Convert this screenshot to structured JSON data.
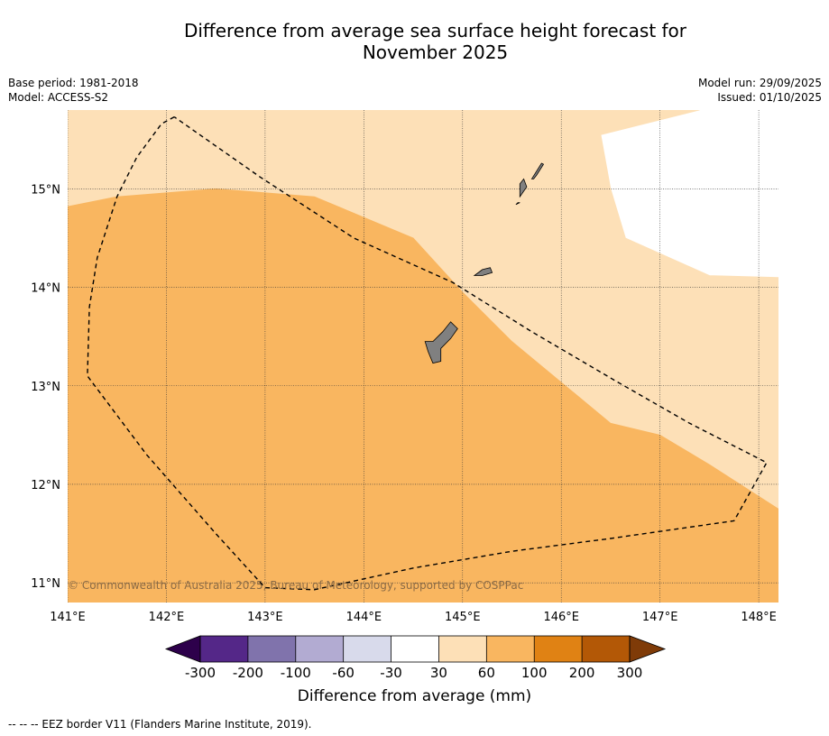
{
  "title_line1": "Difference from average sea surface height forecast for",
  "title_line2": "November 2025",
  "meta_left": {
    "base_period": "Base period: 1981-2018",
    "model": "Model: ACCESS-S2"
  },
  "meta_right": {
    "model_run": "Model run: 29/09/2025",
    "issued": "Issued: 01/10/2025"
  },
  "copyright": "© Commonwealth of Australia 2025, Bureau of Meteorology, supported by COSPPac",
  "footnote": "--  --  -- EEZ border V11 (Flanders Marine Institute, 2019).",
  "map": {
    "lon_range": [
      141,
      148.2
    ],
    "lat_range": [
      10.8,
      15.8
    ],
    "lon_ticks": [
      141,
      142,
      143,
      144,
      145,
      146,
      147,
      148
    ],
    "lon_labels": [
      "141°E",
      "142°E",
      "143°E",
      "144°E",
      "145°E",
      "146°E",
      "147°E",
      "148°E"
    ],
    "lat_ticks": [
      11,
      12,
      13,
      14,
      15
    ],
    "lat_labels": [
      "11°N",
      "12°N",
      "13°N",
      "14°N",
      "15°N"
    ],
    "regions": [
      {
        "name": "anomaly-30-to-60-region",
        "color": "#fde0b7",
        "polygon": [
          [
            141,
            15.8
          ],
          [
            147.4,
            15.8
          ],
          [
            146.4,
            15.55
          ],
          [
            146.5,
            15.0
          ],
          [
            146.65,
            14.5
          ],
          [
            147.5,
            14.12
          ],
          [
            148.2,
            14.1
          ],
          [
            148.2,
            11.75
          ],
          [
            147.5,
            12.2
          ],
          [
            147.0,
            12.5
          ],
          [
            146.5,
            12.62
          ],
          [
            145.5,
            13.45
          ],
          [
            145.0,
            13.95
          ],
          [
            144.5,
            14.5
          ],
          [
            143.5,
            14.92
          ],
          [
            142.5,
            15.0
          ],
          [
            141.5,
            14.92
          ],
          [
            141,
            14.82
          ]
        ]
      },
      {
        "name": "anomaly-60-to-100-region",
        "color": "#f9b660",
        "polygon": [
          [
            141,
            14.82
          ],
          [
            141.5,
            14.92
          ],
          [
            142.5,
            15.0
          ],
          [
            143.5,
            14.92
          ],
          [
            144.5,
            14.5
          ],
          [
            145.0,
            13.95
          ],
          [
            145.5,
            13.45
          ],
          [
            146.5,
            12.62
          ],
          [
            147.0,
            12.5
          ],
          [
            147.5,
            12.2
          ],
          [
            148.2,
            11.75
          ],
          [
            148.2,
            10.8
          ],
          [
            141,
            10.8
          ]
        ]
      }
    ],
    "islands": [
      {
        "name": "guam-island",
        "polygon": [
          [
            144.62,
            13.45
          ],
          [
            144.7,
            13.45
          ],
          [
            144.8,
            13.55
          ],
          [
            144.88,
            13.65
          ],
          [
            144.95,
            13.58
          ],
          [
            144.88,
            13.48
          ],
          [
            144.78,
            13.38
          ],
          [
            144.78,
            13.25
          ],
          [
            144.7,
            13.23
          ],
          [
            144.65,
            13.35
          ]
        ]
      },
      {
        "name": "rota-island",
        "polygon": [
          [
            145.12,
            14.12
          ],
          [
            145.2,
            14.18
          ],
          [
            145.28,
            14.2
          ],
          [
            145.3,
            14.15
          ],
          [
            145.2,
            14.12
          ]
        ]
      },
      {
        "name": "tinian-island",
        "polygon": [
          [
            145.58,
            14.92
          ],
          [
            145.65,
            15.02
          ],
          [
            145.62,
            15.1
          ],
          [
            145.58,
            15.05
          ]
        ]
      },
      {
        "name": "saipan-island",
        "polygon": [
          [
            145.7,
            15.1
          ],
          [
            145.8,
            15.26
          ],
          [
            145.82,
            15.25
          ],
          [
            145.75,
            15.14
          ],
          [
            145.72,
            15.1
          ]
        ]
      },
      {
        "name": "aguijan-island",
        "polygon": [
          [
            145.54,
            14.84
          ],
          [
            145.58,
            14.86
          ],
          [
            145.56,
            14.86
          ]
        ]
      }
    ],
    "eez_border": [
      [
        142.08,
        15.73
      ],
      [
        141.95,
        15.66
      ],
      [
        141.7,
        15.32
      ],
      [
        141.5,
        14.92
      ],
      [
        141.3,
        14.3
      ],
      [
        141.22,
        13.8
      ],
      [
        141.2,
        13.1
      ],
      [
        141.8,
        12.3
      ],
      [
        142.5,
        11.5
      ],
      [
        143.0,
        10.95
      ],
      [
        143.5,
        10.93
      ],
      [
        144.5,
        11.15
      ],
      [
        145.5,
        11.32
      ],
      [
        146.5,
        11.45
      ],
      [
        147.75,
        11.63
      ],
      [
        148.08,
        12.22
      ],
      [
        147.3,
        12.62
      ],
      [
        146.55,
        13.05
      ],
      [
        145.7,
        13.55
      ],
      [
        144.9,
        14.05
      ],
      [
        143.9,
        14.5
      ],
      [
        142.95,
        15.12
      ],
      [
        142.08,
        15.73
      ]
    ]
  },
  "colorbar": {
    "label": "Difference from average (mm)",
    "low_extend_color": "#2d004b",
    "high_extend_color": "#7f3b08",
    "colors": [
      "#542788",
      "#8073ac",
      "#b2abd2",
      "#d8daeb",
      "#ffffff",
      "#fde0b7",
      "#f9b660",
      "#e08214",
      "#b35806"
    ],
    "ticks": [
      "-300",
      "-200",
      "-100",
      "-60",
      "-30",
      "30",
      "60",
      "100",
      "200",
      "300"
    ]
  }
}
